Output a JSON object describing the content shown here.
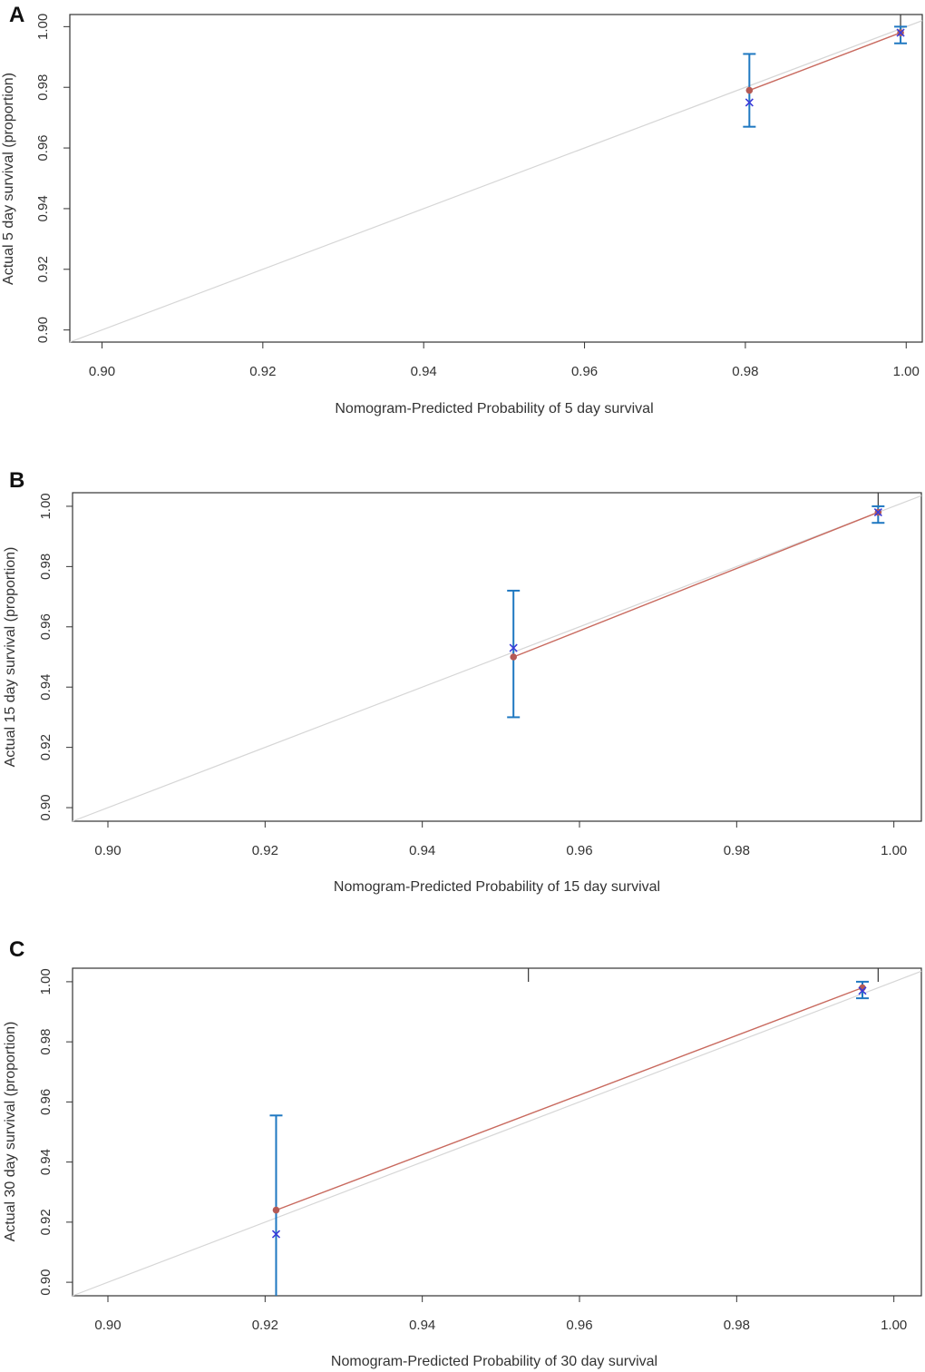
{
  "colors": {
    "ideal_line": "#d6d6d6",
    "fit_line": "#c8695e",
    "error_bar": "#1f78c1",
    "observed_dot": "#b55a55",
    "estimate_cross": "#3b3bd9"
  },
  "chart_data": [
    {
      "panel": "A",
      "type": "scatter",
      "title": "",
      "xlabel": "Nomogram-Predicted Probability of 5 day survival",
      "ylabel": "Actual 5 day survival (proportion)",
      "xlim": [
        0.896,
        1.002
      ],
      "ylim": [
        0.896,
        1.004
      ],
      "xticks": [
        "0.90",
        "0.92",
        "0.94",
        "0.96",
        "0.98",
        "1.00"
      ],
      "xtick_values": [
        0.9,
        0.92,
        0.94,
        0.96,
        0.98,
        1.0
      ],
      "yticks": [
        "0.90",
        "0.92",
        "0.94",
        "0.96",
        "0.98",
        "1.00"
      ],
      "ytick_values": [
        0.9,
        0.92,
        0.94,
        0.96,
        0.98,
        1.0
      ],
      "points": [
        {
          "x": 0.9805,
          "observed": 0.979,
          "estimate": 0.975,
          "ci_low": 0.967,
          "ci_high": 0.991
        },
        {
          "x": 0.9993,
          "observed": 0.998,
          "estimate": 0.998,
          "ci_low": 0.9945,
          "ci_high": 1.0
        }
      ],
      "top_ticks": [
        0.9993
      ]
    },
    {
      "panel": "B",
      "type": "scatter",
      "title": "",
      "xlabel": "Nomogram-Predicted Probability of 15 day survival",
      "ylabel": "Actual 15 day survival (proportion)",
      "xlim": [
        0.8955,
        1.0035
      ],
      "ylim": [
        0.8955,
        1.0045
      ],
      "xticks": [
        "0.90",
        "0.92",
        "0.94",
        "0.96",
        "0.98",
        "1.00"
      ],
      "xtick_values": [
        0.9,
        0.92,
        0.94,
        0.96,
        0.98,
        1.0
      ],
      "yticks": [
        "0.90",
        "0.92",
        "0.94",
        "0.96",
        "0.98",
        "1.00"
      ],
      "ytick_values": [
        0.9,
        0.92,
        0.94,
        0.96,
        0.98,
        1.0
      ],
      "points": [
        {
          "x": 0.9516,
          "observed": 0.95,
          "estimate": 0.953,
          "ci_low": 0.93,
          "ci_high": 0.972
        },
        {
          "x": 0.998,
          "observed": 0.998,
          "estimate": 0.998,
          "ci_low": 0.9945,
          "ci_high": 1.0
        }
      ],
      "top_ticks": [
        0.998
      ]
    },
    {
      "panel": "C",
      "type": "scatter",
      "title": "",
      "xlabel": "Nomogram-Predicted Probability of 30 day survival",
      "ylabel": "Actual 30 day survival (proportion)",
      "xlim": [
        0.8955,
        1.0035
      ],
      "ylim": [
        0.8955,
        1.0045
      ],
      "xticks": [
        "0.90",
        "0.92",
        "0.94",
        "0.96",
        "0.98",
        "1.00"
      ],
      "xtick_values": [
        0.9,
        0.92,
        0.94,
        0.96,
        0.98,
        1.0
      ],
      "yticks": [
        "0.90",
        "0.92",
        "0.94",
        "0.96",
        "0.98",
        "1.00"
      ],
      "ytick_values": [
        0.9,
        0.92,
        0.94,
        0.96,
        0.98,
        1.0
      ],
      "points": [
        {
          "x": 0.9214,
          "observed": 0.924,
          "estimate": 0.916,
          "ci_low": 0.8955,
          "ci_high": 0.9555
        },
        {
          "x": 0.996,
          "observed": 0.998,
          "estimate": 0.997,
          "ci_low": 0.9945,
          "ci_high": 1.0
        }
      ],
      "top_ticks": [
        0.9535,
        0.998
      ]
    }
  ]
}
